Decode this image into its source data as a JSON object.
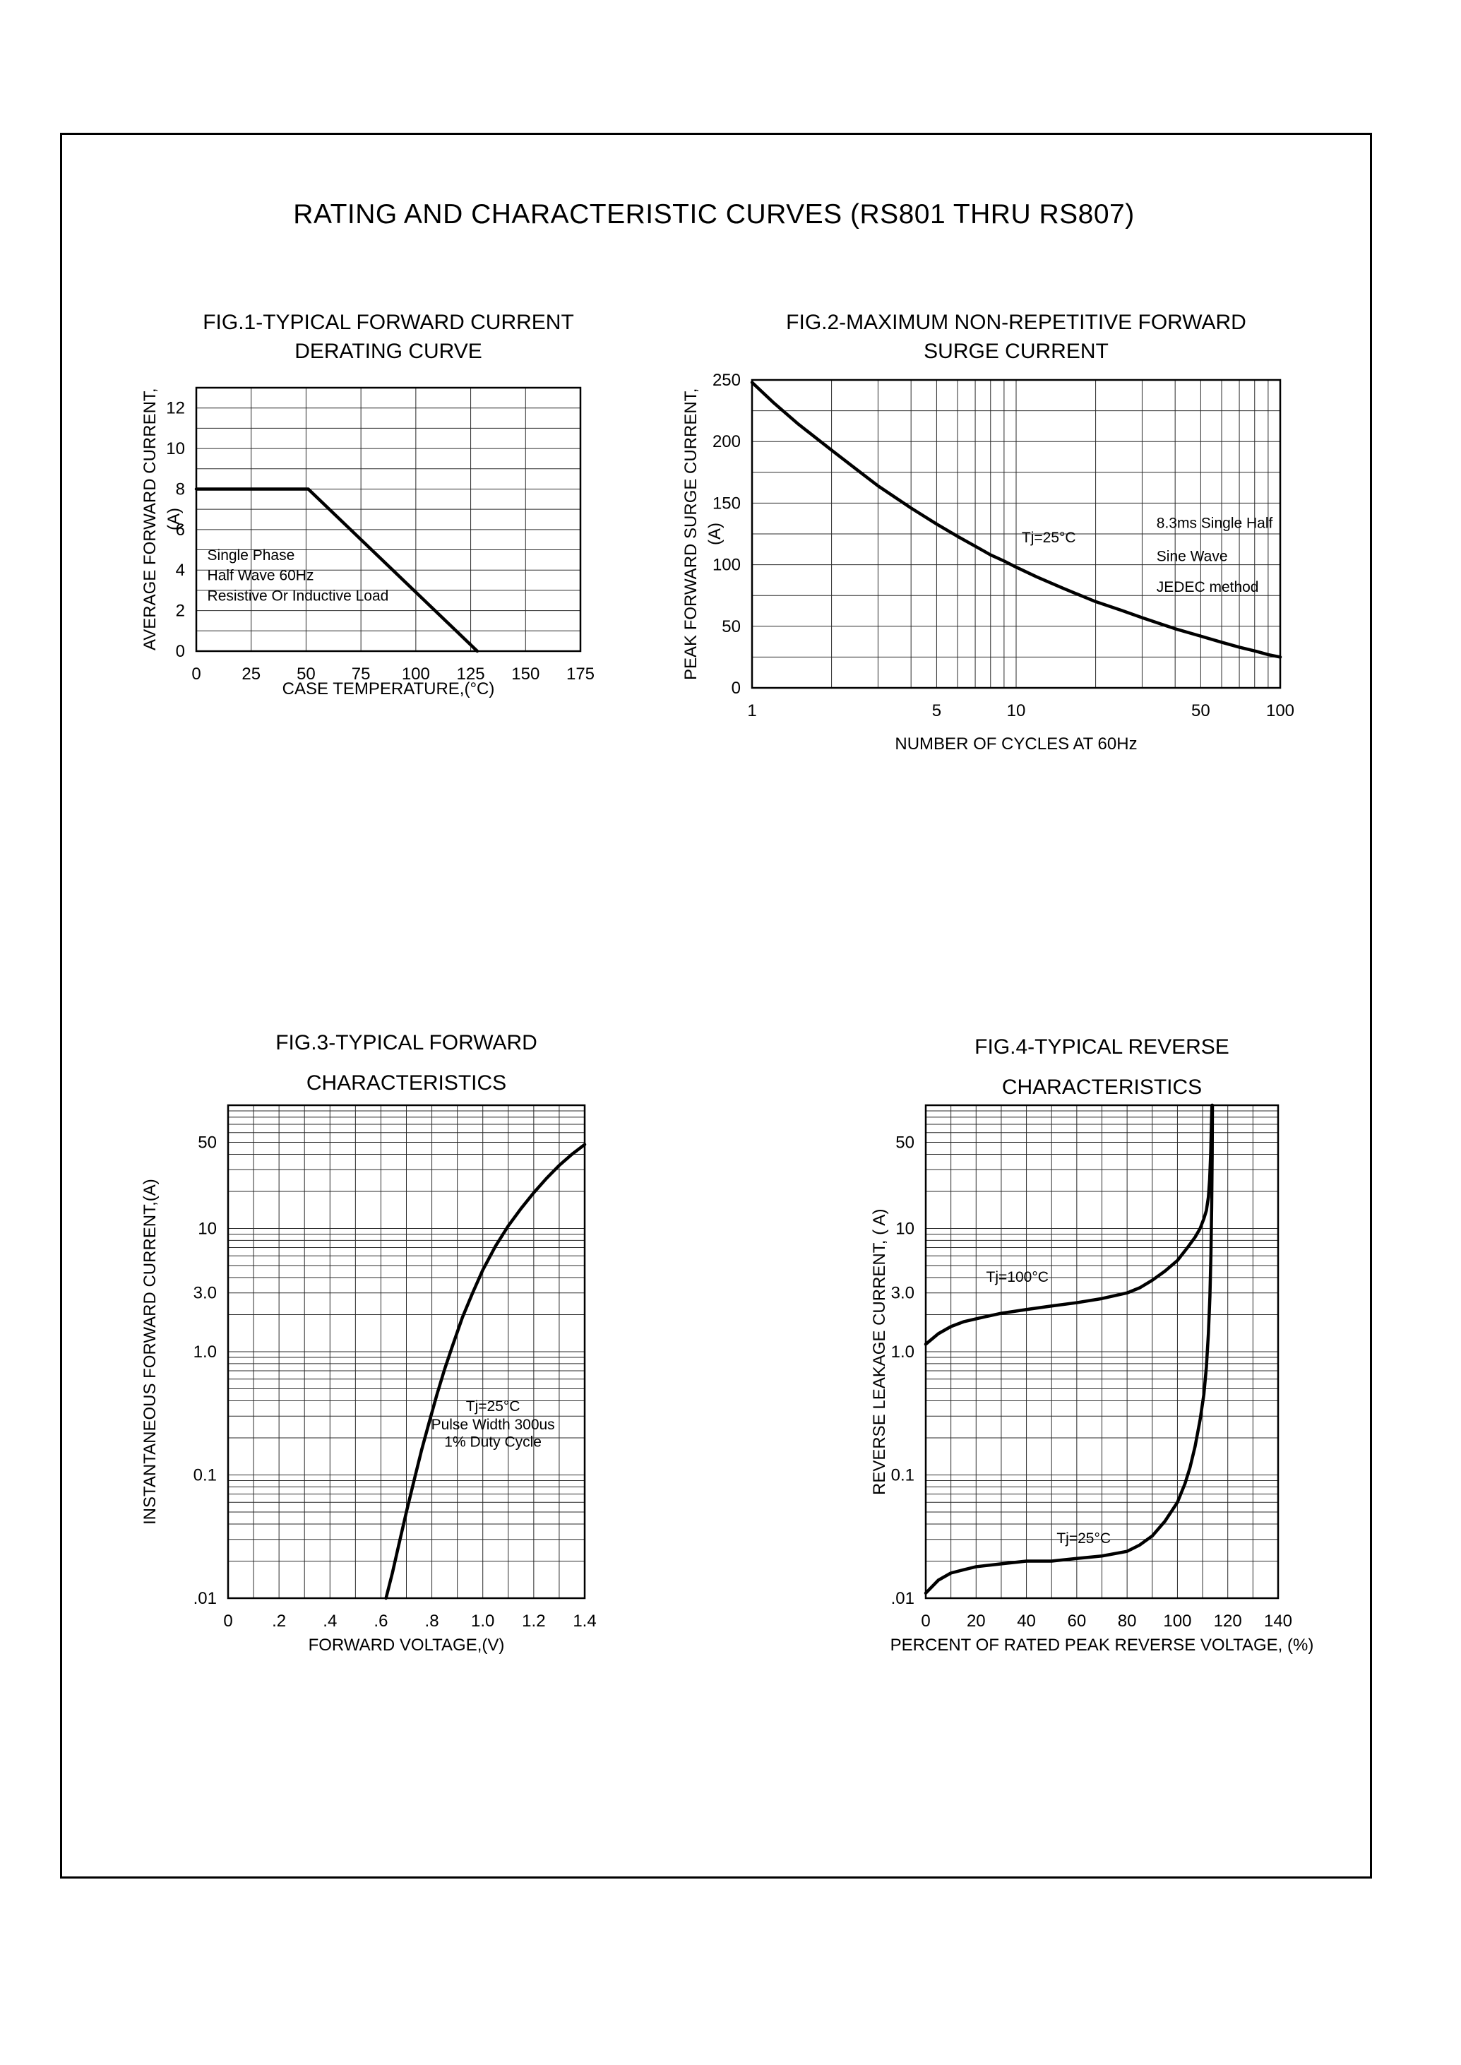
{
  "page": {
    "title": "RATING AND CHARACTERISTIC CURVES (RS801 THRU RS807)"
  },
  "chart_data": [
    {
      "id": "fig1",
      "type": "line",
      "title_lines": [
        "FIG.1-TYPICAL FORWARD CURRENT",
        "DERATING CURVE"
      ],
      "xlabel": "CASE TEMPERATURE,(°C)",
      "ylabel": "AVERAGE FORWARD CURRENT,(A)",
      "x": {
        "scale": "linear",
        "min": 0,
        "max": 175,
        "grid_step": 25,
        "ticks": [
          {
            "v": 0,
            "l": "0"
          },
          {
            "v": 25,
            "l": "25"
          },
          {
            "v": 50,
            "l": "50"
          },
          {
            "v": 75,
            "l": "75"
          },
          {
            "v": 100,
            "l": "100"
          },
          {
            "v": 125,
            "l": "125"
          },
          {
            "v": 150,
            "l": "150"
          },
          {
            "v": 175,
            "l": "175"
          }
        ]
      },
      "y": {
        "scale": "linear",
        "min": 0,
        "max": 13,
        "grid_step": 1,
        "ticks": [
          {
            "v": 0,
            "l": "0"
          },
          {
            "v": 2,
            "l": "2"
          },
          {
            "v": 4,
            "l": "4"
          },
          {
            "v": 6,
            "l": "6"
          },
          {
            "v": 8,
            "l": "8"
          },
          {
            "v": 10,
            "l": "10"
          },
          {
            "v": 12,
            "l": "12"
          }
        ]
      },
      "series": [
        {
          "name": "derating-curve",
          "points": [
            [
              0,
              8
            ],
            [
              51,
              8
            ],
            [
              128,
              0
            ]
          ]
        }
      ],
      "annotations": [
        {
          "text": "Single Phase",
          "x": 5,
          "y": 4.5,
          "anchor": "start"
        },
        {
          "text": "Half Wave 60Hz",
          "x": 5,
          "y": 3.5,
          "anchor": "start"
        },
        {
          "text": "Resistive Or Inductive Load",
          "x": 5,
          "y": 2.5,
          "anchor": "start"
        }
      ]
    },
    {
      "id": "fig2",
      "type": "line",
      "title_lines": [
        "FIG.2-MAXIMUM NON-REPETITIVE FORWARD",
        "SURGE CURRENT"
      ],
      "xlabel": "NUMBER OF CYCLES AT 60Hz",
      "ylabel": "PEAK FORWARD SURGE CURRENT,(A)",
      "x": {
        "scale": "log",
        "min": 1,
        "max": 100,
        "ticks": [
          {
            "v": 1,
            "l": "1"
          },
          {
            "v": 5,
            "l": "5"
          },
          {
            "v": 10,
            "l": "10"
          },
          {
            "v": 50,
            "l": "50"
          },
          {
            "v": 100,
            "l": "100"
          }
        ]
      },
      "y": {
        "scale": "linear",
        "min": 0,
        "max": 250,
        "grid_step": 25,
        "ticks": [
          {
            "v": 0,
            "l": "0"
          },
          {
            "v": 50,
            "l": "50"
          },
          {
            "v": 100,
            "l": "100"
          },
          {
            "v": 150,
            "l": "150"
          },
          {
            "v": 200,
            "l": "200"
          },
          {
            "v": 250,
            "l": "250"
          }
        ]
      },
      "series": [
        {
          "name": "surge-current-curve",
          "points": [
            [
              1,
              248
            ],
            [
              1.2,
              232
            ],
            [
              1.5,
              214
            ],
            [
              2,
              193
            ],
            [
              2.5,
              177
            ],
            [
              3,
              164
            ],
            [
              4,
              146
            ],
            [
              5,
              133
            ],
            [
              6,
              123
            ],
            [
              7,
              115
            ],
            [
              8,
              108
            ],
            [
              9,
              103
            ],
            [
              10,
              98
            ],
            [
              12,
              90
            ],
            [
              15,
              81
            ],
            [
              20,
              70
            ],
            [
              25,
              63
            ],
            [
              30,
              57
            ],
            [
              40,
              48
            ],
            [
              50,
              42
            ],
            [
              60,
              37
            ],
            [
              70,
              33
            ],
            [
              80,
              30
            ],
            [
              90,
              27
            ],
            [
              100,
              25
            ]
          ]
        }
      ],
      "annotations": [
        {
          "text": "Tj=25°C",
          "x": 10.5,
          "y": 118,
          "anchor": "start"
        },
        {
          "text": "8.3ms Single Half",
          "x": 34,
          "y": 130,
          "anchor": "start"
        },
        {
          "text": "Sine Wave",
          "x": 34,
          "y": 103,
          "anchor": "start"
        },
        {
          "text": "JEDEC method",
          "x": 34,
          "y": 78,
          "anchor": "start"
        }
      ]
    },
    {
      "id": "fig3",
      "type": "line",
      "title_lines": [
        "FIG.3-TYPICAL FORWARD",
        "CHARACTERISTICS"
      ],
      "xlabel": "FORWARD VOLTAGE,(V)",
      "ylabel": "INSTANTANEOUS FORWARD CURRENT,(A)",
      "x": {
        "scale": "linear",
        "min": 0,
        "max": 1.4,
        "grid_step": 0.1,
        "ticks": [
          {
            "v": 0,
            "l": "0"
          },
          {
            "v": 0.2,
            "l": ".2"
          },
          {
            "v": 0.4,
            "l": ".4"
          },
          {
            "v": 0.6,
            "l": ".6"
          },
          {
            "v": 0.8,
            "l": ".8"
          },
          {
            "v": 1.0,
            "l": "1.0"
          },
          {
            "v": 1.2,
            "l": "1.2"
          },
          {
            "v": 1.4,
            "l": "1.4"
          }
        ]
      },
      "y": {
        "scale": "log",
        "min": 0.01,
        "max": 100,
        "ticks": [
          {
            "v": 50,
            "l": "50"
          },
          {
            "v": 10,
            "l": "10"
          },
          {
            "v": 3,
            "l": "3.0"
          },
          {
            "v": 1,
            "l": "1.0"
          },
          {
            "v": 0.1,
            "l": "0.1"
          },
          {
            "v": 0.01,
            "l": ".01"
          }
        ]
      },
      "series": [
        {
          "name": "forward-characteristic-curve",
          "points": [
            [
              0.62,
              0.01
            ],
            [
              0.645,
              0.016
            ],
            [
              0.67,
              0.027
            ],
            [
              0.7,
              0.05
            ],
            [
              0.73,
              0.09
            ],
            [
              0.76,
              0.16
            ],
            [
              0.79,
              0.27
            ],
            [
              0.82,
              0.45
            ],
            [
              0.85,
              0.72
            ],
            [
              0.88,
              1.1
            ],
            [
              0.92,
              1.9
            ],
            [
              0.96,
              3.0
            ],
            [
              1.0,
              4.6
            ],
            [
              1.05,
              7.2
            ],
            [
              1.1,
              10.5
            ],
            [
              1.15,
              14.5
            ],
            [
              1.2,
              19.5
            ],
            [
              1.25,
              25.5
            ],
            [
              1.3,
              32.5
            ],
            [
              1.35,
              40
            ],
            [
              1.4,
              48
            ]
          ]
        }
      ],
      "annotations": [
        {
          "text": "Tj=25°C",
          "x": 1.04,
          "y": 0.33,
          "anchor": "middle"
        },
        {
          "text": "Pulse Width 300us",
          "x": 1.04,
          "y": 0.235,
          "anchor": "middle"
        },
        {
          "text": "1% Duty Cycle",
          "x": 1.04,
          "y": 0.17,
          "anchor": "middle"
        }
      ]
    },
    {
      "id": "fig4",
      "type": "line",
      "title_lines": [
        "FIG.4-TYPICAL REVERSE",
        "CHARACTERISTICS"
      ],
      "xlabel": "PERCENT OF RATED PEAK REVERSE VOLTAGE, (%)",
      "ylabel": "REVERSE LEAKAGE CURRENT, ( A)",
      "x": {
        "scale": "linear",
        "min": 0,
        "max": 140,
        "grid_step": 10,
        "ticks": [
          {
            "v": 0,
            "l": "0"
          },
          {
            "v": 20,
            "l": "20"
          },
          {
            "v": 40,
            "l": "40"
          },
          {
            "v": 60,
            "l": "60"
          },
          {
            "v": 80,
            "l": "80"
          },
          {
            "v": 100,
            "l": "100"
          },
          {
            "v": 120,
            "l": "120"
          },
          {
            "v": 140,
            "l": "140"
          }
        ]
      },
      "y": {
        "scale": "log",
        "min": 0.01,
        "max": 100,
        "ticks": [
          {
            "v": 50,
            "l": "50"
          },
          {
            "v": 10,
            "l": "10"
          },
          {
            "v": 3,
            "l": "3.0"
          },
          {
            "v": 1,
            "l": "1.0"
          },
          {
            "v": 0.1,
            "l": "0.1"
          },
          {
            "v": 0.01,
            "l": ".01"
          }
        ]
      },
      "series": [
        {
          "name": "reverse-leakage-tj100",
          "points": [
            [
              0,
              1.15
            ],
            [
              5,
              1.4
            ],
            [
              10,
              1.6
            ],
            [
              15,
              1.75
            ],
            [
              20,
              1.85
            ],
            [
              25,
              1.95
            ],
            [
              30,
              2.05
            ],
            [
              40,
              2.2
            ],
            [
              50,
              2.35
            ],
            [
              60,
              2.5
            ],
            [
              70,
              2.7
            ],
            [
              80,
              3.0
            ],
            [
              85,
              3.3
            ],
            [
              90,
              3.8
            ],
            [
              95,
              4.5
            ],
            [
              100,
              5.5
            ],
            [
              104,
              7
            ],
            [
              107,
              8.5
            ],
            [
              109,
              10
            ],
            [
              110.5,
              12
            ],
            [
              111.5,
              14
            ],
            [
              112.3,
              18
            ],
            [
              112.8,
              25
            ],
            [
              113.2,
              40
            ],
            [
              113.5,
              70
            ],
            [
              113.7,
              100
            ]
          ]
        },
        {
          "name": "reverse-leakage-tj25",
          "points": [
            [
              0,
              0.011
            ],
            [
              5,
              0.014
            ],
            [
              10,
              0.016
            ],
            [
              15,
              0.017
            ],
            [
              20,
              0.018
            ],
            [
              30,
              0.019
            ],
            [
              40,
              0.02
            ],
            [
              50,
              0.02
            ],
            [
              60,
              0.021
            ],
            [
              70,
              0.022
            ],
            [
              80,
              0.024
            ],
            [
              85,
              0.027
            ],
            [
              90,
              0.032
            ],
            [
              95,
              0.042
            ],
            [
              100,
              0.06
            ],
            [
              103,
              0.085
            ],
            [
              105,
              0.115
            ],
            [
              107,
              0.17
            ],
            [
              109,
              0.28
            ],
            [
              110.5,
              0.45
            ],
            [
              111.5,
              0.75
            ],
            [
              112.3,
              1.4
            ],
            [
              112.9,
              2.8
            ],
            [
              113.3,
              6
            ],
            [
              113.6,
              15
            ],
            [
              113.8,
              40
            ],
            [
              113.9,
              100
            ]
          ]
        }
      ],
      "annotations": [
        {
          "text": "Tj=100°C",
          "x": 24,
          "y": 3.7,
          "anchor": "start"
        },
        {
          "text": "Tj=25°C",
          "x": 52,
          "y": 0.028,
          "anchor": "start"
        }
      ]
    }
  ]
}
